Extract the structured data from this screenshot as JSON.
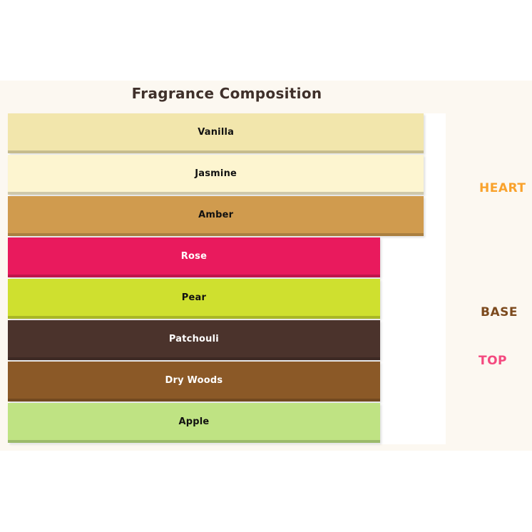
{
  "chart_data": {
    "type": "bar",
    "orientation": "horizontal",
    "title": "Fragrance Composition",
    "axes_visible": false,
    "xlim": [
      0,
      100
    ],
    "plot_background": "#FFFFFF",
    "panel_background": "#FCF8F1",
    "title_color": "#3F302A",
    "bars": [
      {
        "label": "Vanilla",
        "value": 95,
        "color": "#F2E6AC",
        "text_color": "#111111"
      },
      {
        "label": "Jasmine",
        "value": 95,
        "color": "#FDF5D0",
        "text_color": "#111111"
      },
      {
        "label": "Amber",
        "value": 95,
        "color": "#D09B4E",
        "text_color": "#111111"
      },
      {
        "label": "Rose",
        "value": 85,
        "color": "#E91A5D",
        "text_color": "#FFFFFF"
      },
      {
        "label": "Pear",
        "value": 85,
        "color": "#CFE02F",
        "text_color": "#111111"
      },
      {
        "label": "Patchouli",
        "value": 85,
        "color": "#4B332C",
        "text_color": "#FFFFFF"
      },
      {
        "label": "Dry Woods",
        "value": 85,
        "color": "#8B5927",
        "text_color": "#FFFFFF"
      },
      {
        "label": "Apple",
        "value": 85,
        "color": "#BFE383",
        "text_color": "#111111"
      }
    ],
    "group_labels": [
      {
        "label": "HEART",
        "color": "#F9A22C"
      },
      {
        "label": "BASE",
        "color": "#7C4A1E"
      },
      {
        "label": "TOP",
        "color": "#F4497F"
      }
    ]
  }
}
